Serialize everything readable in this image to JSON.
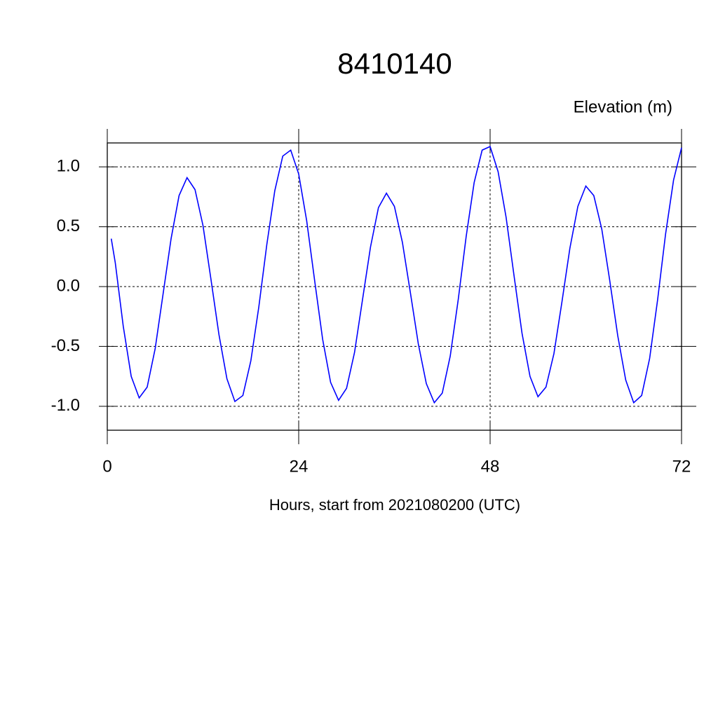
{
  "chart_data": {
    "type": "line",
    "title": "8410140",
    "ylabel": "Elevation (m)",
    "xlabel": "Hours, start from 2021080200 (UTC)",
    "x": [
      0.5,
      1,
      2,
      3,
      4,
      5,
      6,
      7,
      8,
      9,
      10,
      11,
      12,
      13,
      14,
      15,
      16,
      17,
      18,
      19,
      20,
      21,
      22,
      23,
      24,
      25,
      26,
      27,
      28,
      29,
      30,
      31,
      32,
      33,
      34,
      35,
      36,
      37,
      38,
      39,
      40,
      41,
      42,
      43,
      44,
      45,
      46,
      47,
      48,
      49,
      50,
      51,
      52,
      53,
      54,
      55,
      56,
      57,
      58,
      59,
      60,
      61,
      62,
      63,
      64,
      65,
      66,
      67,
      68,
      69,
      70,
      71,
      72
    ],
    "series": [
      {
        "color": "#0000ff",
        "values": [
          0.4,
          0.2,
          -0.33,
          -0.75,
          -0.93,
          -0.84,
          -0.52,
          -0.06,
          0.4,
          0.76,
          0.91,
          0.81,
          0.51,
          0.06,
          -0.4,
          -0.77,
          -0.96,
          -0.91,
          -0.62,
          -0.17,
          0.35,
          0.8,
          1.09,
          1.14,
          0.94,
          0.55,
          0.05,
          -0.44,
          -0.8,
          -0.95,
          -0.85,
          -0.55,
          -0.11,
          0.33,
          0.66,
          0.78,
          0.67,
          0.37,
          -0.05,
          -0.48,
          -0.81,
          -0.97,
          -0.89,
          -0.58,
          -0.11,
          0.42,
          0.87,
          1.14,
          1.17,
          0.96,
          0.58,
          0.09,
          -0.39,
          -0.75,
          -0.92,
          -0.84,
          -0.56,
          -0.13,
          0.32,
          0.67,
          0.84,
          0.76,
          0.48,
          0.05,
          -0.41,
          -0.78,
          -0.97,
          -0.91,
          -0.6,
          -0.11,
          0.44,
          0.89,
          1.16
        ]
      }
    ],
    "xlim": [
      0,
      72
    ],
    "ylim": [
      -1.2,
      1.2
    ],
    "xticks": [
      0,
      24,
      48,
      72
    ],
    "yticks": [
      {
        "value": -1,
        "label": "-1.0"
      },
      {
        "value": -0.5,
        "label": "-0.5"
      },
      {
        "value": 0,
        "label": "0.0"
      },
      {
        "value": 0.5,
        "label": "0.5"
      },
      {
        "value": 1,
        "label": "1.0"
      }
    ],
    "grid": true
  }
}
